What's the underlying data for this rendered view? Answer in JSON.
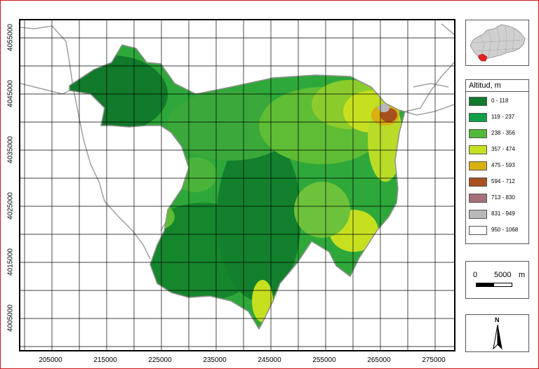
{
  "map": {
    "x_ticks": [
      "205000",
      "215000",
      "225000",
      "235000",
      "245000",
      "255000",
      "265000",
      "275000"
    ],
    "y_ticks": [
      "4055000",
      "4045000",
      "4035000",
      "4025000",
      "4015000",
      "4005000"
    ]
  },
  "legend": {
    "title": "Altitud, m",
    "items": [
      {
        "label": "0 - 118",
        "color": "#117a2b"
      },
      {
        "label": "119 - 237",
        "color": "#0fa048"
      },
      {
        "label": "238 - 356",
        "color": "#52b83a"
      },
      {
        "label": "357 - 474",
        "color": "#c6e020"
      },
      {
        "label": "475 - 593",
        "color": "#d9b010"
      },
      {
        "label": "594 - 712",
        "color": "#a8501e"
      },
      {
        "label": "713 - 830",
        "color": "#a87078"
      },
      {
        "label": "831 - 949",
        "color": "#b8b8b8"
      },
      {
        "label": "950 - 1068",
        "color": "#ffffff"
      }
    ]
  },
  "scale_bar": {
    "start": "0",
    "end": "5000",
    "unit": "m"
  },
  "north_arrow": {
    "label": "N"
  },
  "colors": {
    "frame": "#d01818",
    "coast": "#a0a0a0",
    "grid": "#000000"
  }
}
